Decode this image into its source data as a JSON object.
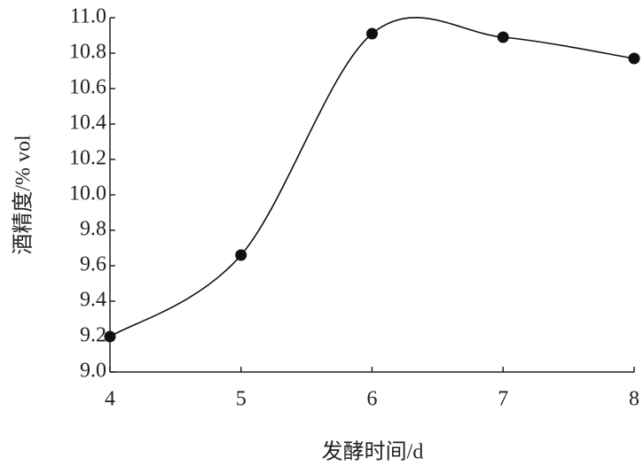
{
  "chart_data": {
    "type": "line",
    "x_label": "发酵时间/d",
    "y_label": "酒精度/% vol",
    "x": [
      4,
      5,
      6,
      7,
      8
    ],
    "series": [
      {
        "color": "#111111",
        "values": [
          9.2,
          9.66,
          10.91,
          10.89,
          10.77
        ]
      }
    ],
    "xlim": [
      4,
      8
    ],
    "xticks": [
      4,
      5,
      6,
      7,
      8
    ],
    "ylim": [
      9.0,
      11.0
    ],
    "yticks": [
      {
        "value": 9.0,
        "label": "9.0"
      },
      9.2,
      9.4,
      9.6,
      9.8,
      {
        "value": 10.0,
        "label": "10.0"
      },
      10.2,
      10.4,
      10.6,
      10.8,
      {
        "value": 11.0,
        "label": "11.0"
      }
    ],
    "smooth": true,
    "grid": false
  }
}
